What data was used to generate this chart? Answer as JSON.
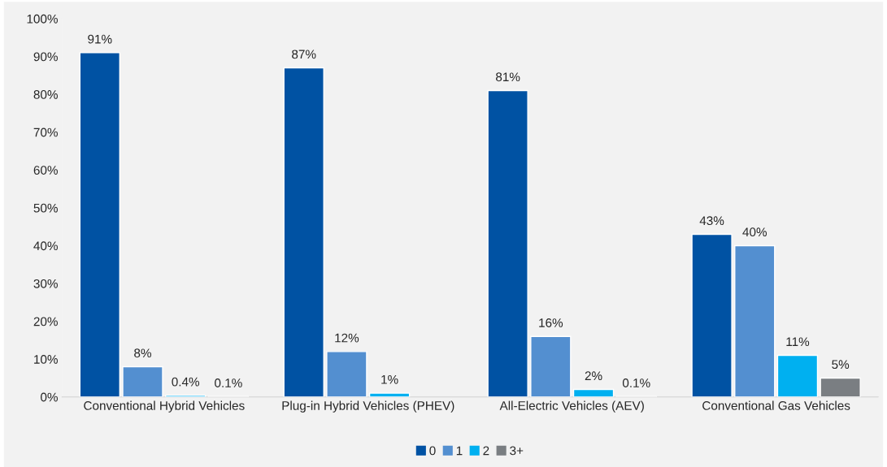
{
  "chart_data": {
    "type": "bar",
    "categories": [
      "Conventional Hybrid Vehicles",
      "Plug-in Hybrid Vehicles (PHEV)",
      "All-Electric Vehicles (AEV)",
      "Conventional Gas Vehicles"
    ],
    "series": [
      {
        "name": "0",
        "color": "#0052a3",
        "values": [
          91,
          87,
          81,
          43
        ],
        "value_labels": [
          "91%",
          "87%",
          "81%",
          "43%"
        ]
      },
      {
        "name": "1",
        "color": "#538fd0",
        "values": [
          8,
          12,
          16,
          40
        ],
        "value_labels": [
          "8%",
          "12%",
          "16%",
          "40%"
        ]
      },
      {
        "name": "2",
        "color": "#00b0f0",
        "values": [
          0.4,
          1,
          2,
          11
        ],
        "value_labels": [
          "0.4%",
          "1%",
          "2%",
          "11%"
        ]
      },
      {
        "name": "3+",
        "color": "#7a7e82",
        "values": [
          0.1,
          null,
          0.1,
          5
        ],
        "value_labels": [
          "0.1%",
          null,
          "0.1%",
          "5%"
        ]
      }
    ],
    "ylim": [
      0,
      100
    ],
    "yticks": [
      {
        "value": 0,
        "label": "0%"
      },
      {
        "value": 10,
        "label": "10%"
      },
      {
        "value": 20,
        "label": "20%"
      },
      {
        "value": 30,
        "label": "30%"
      },
      {
        "value": 40,
        "label": "40%"
      },
      {
        "value": 50,
        "label": "50%"
      },
      {
        "value": 60,
        "label": "60%"
      },
      {
        "value": 70,
        "label": "70%"
      },
      {
        "value": 80,
        "label": "80%"
      },
      {
        "value": 90,
        "label": "90%"
      },
      {
        "value": 100,
        "label": "100%"
      }
    ],
    "grid": false,
    "legend": "bottom"
  }
}
